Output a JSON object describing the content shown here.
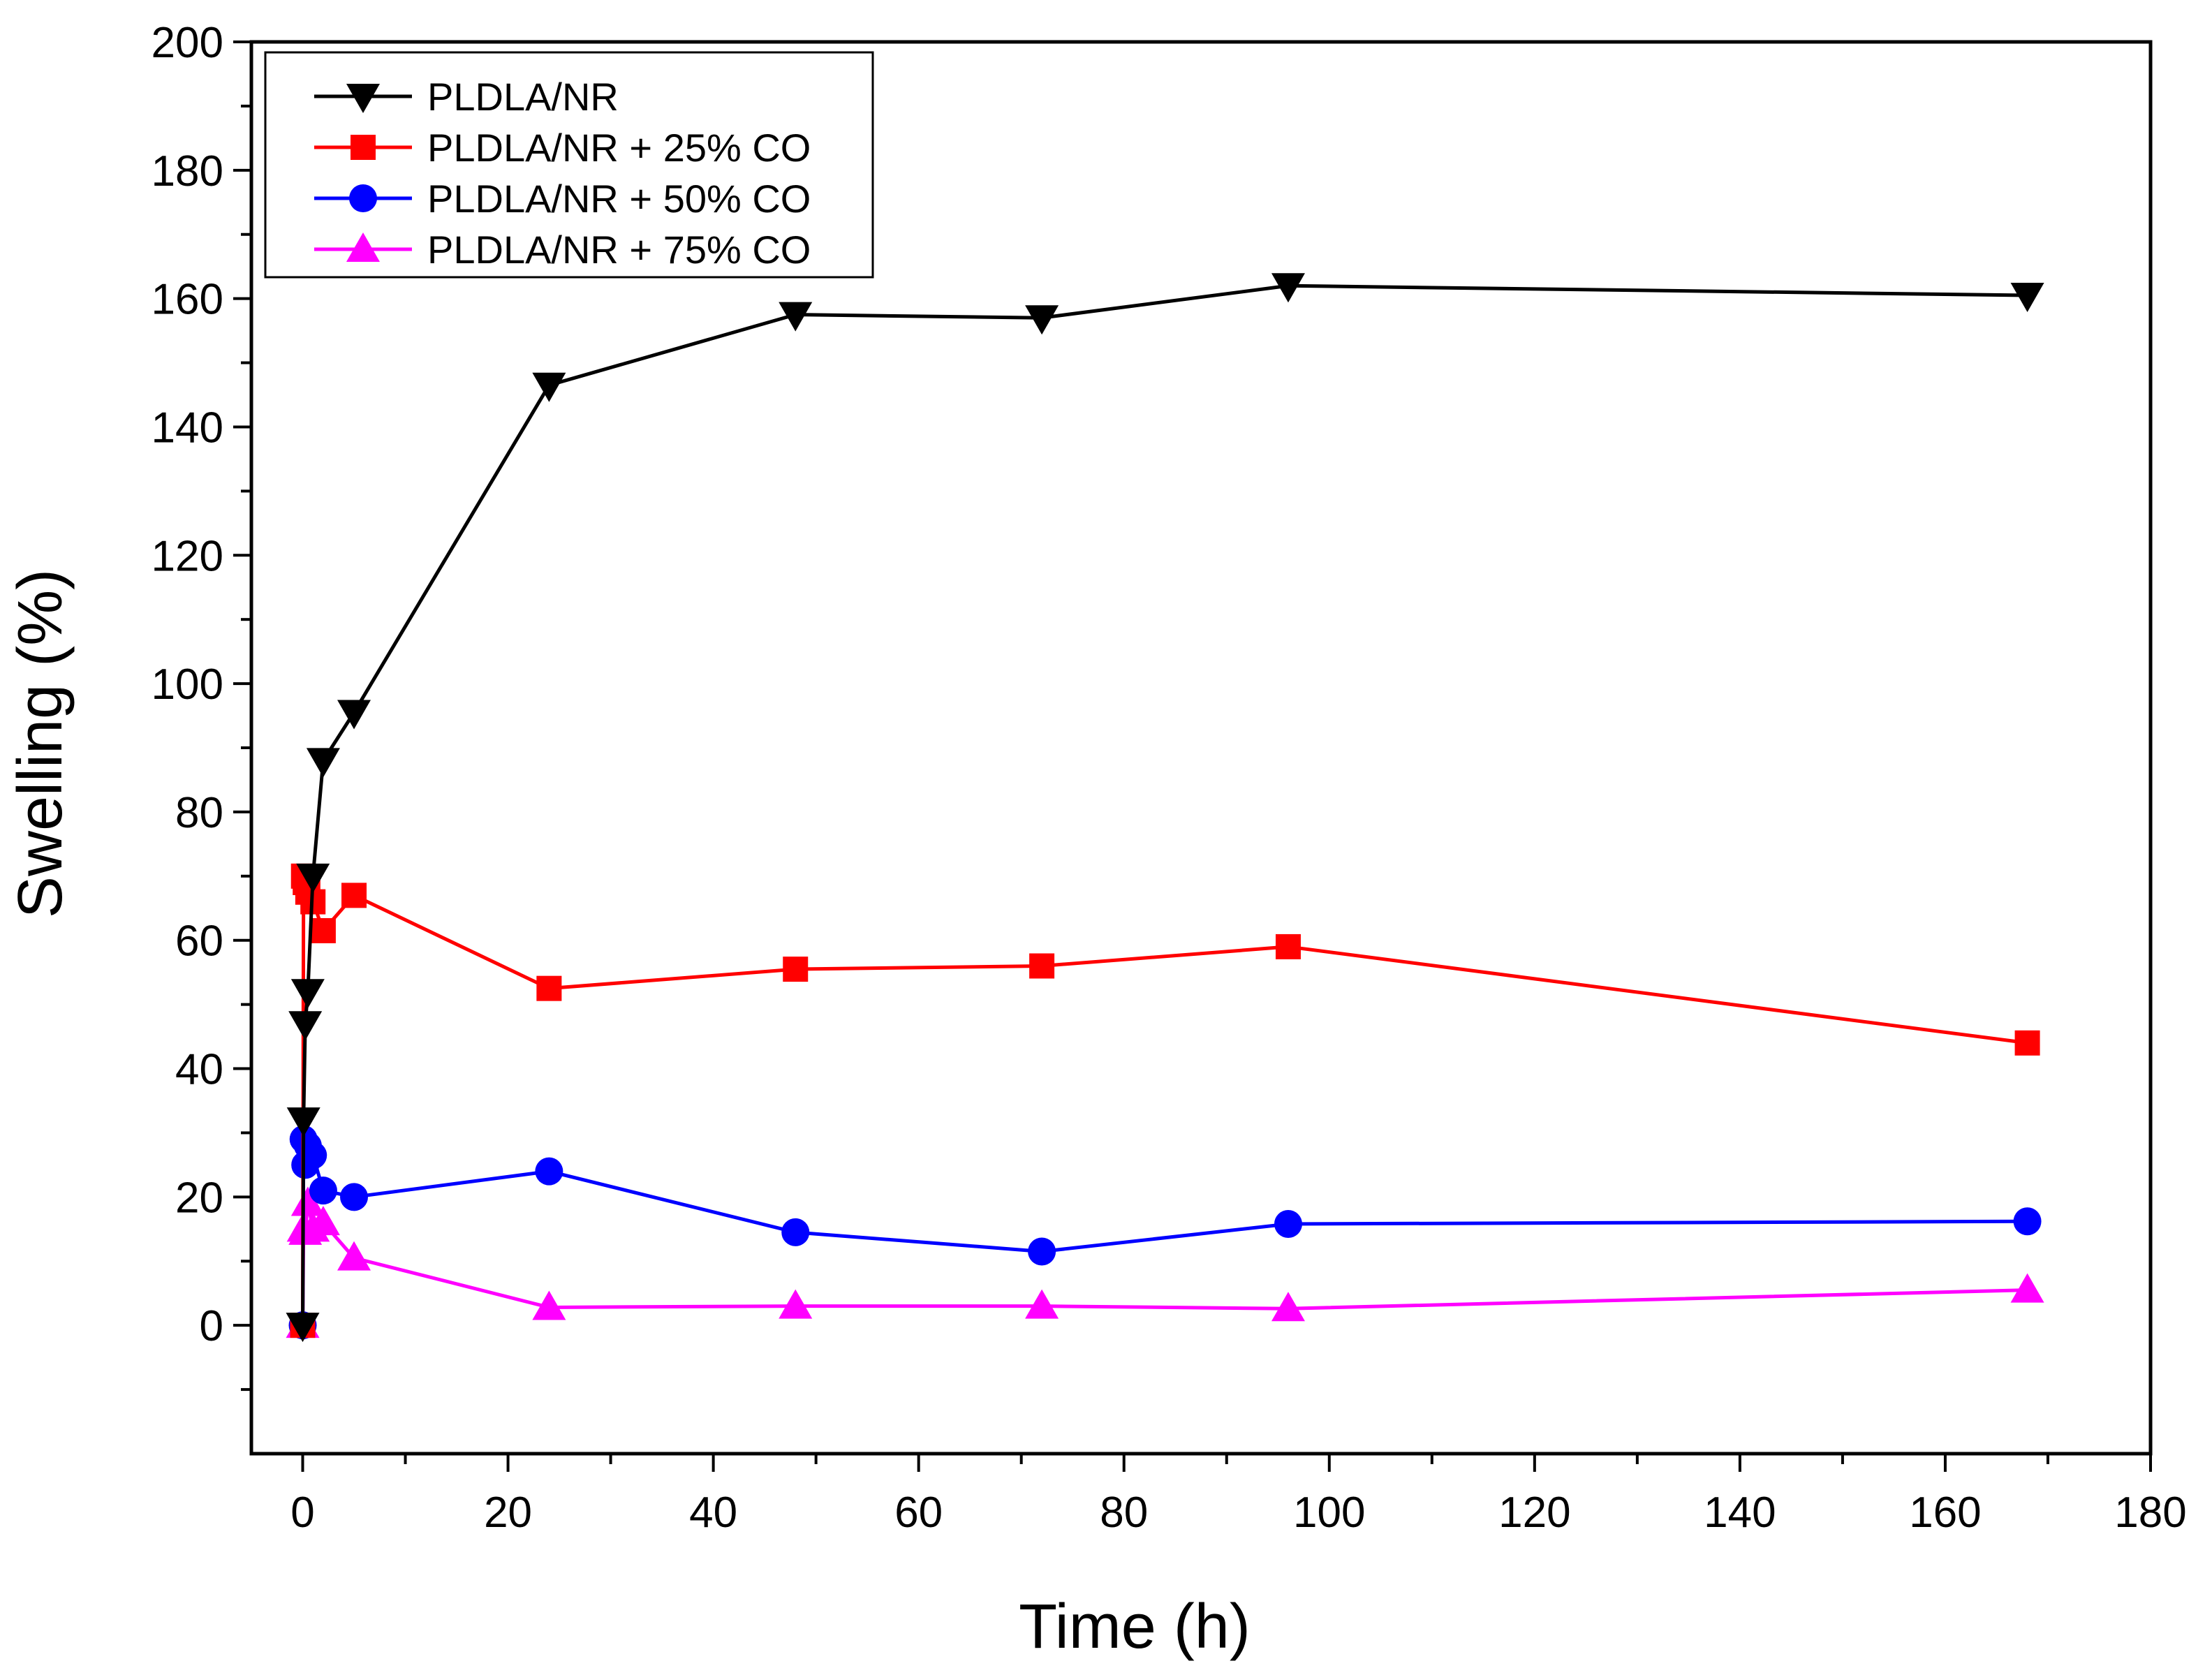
{
  "chart_data": {
    "type": "line",
    "title": "",
    "xlabel": "Time (h)",
    "ylabel": "Swelling (%)",
    "xlim": [
      -5,
      180
    ],
    "ylim": [
      -20,
      200
    ],
    "xticks": [
      0,
      20,
      40,
      60,
      80,
      100,
      120,
      140,
      160,
      180
    ],
    "yticks": [
      0,
      20,
      40,
      60,
      80,
      100,
      120,
      140,
      160,
      180,
      200
    ],
    "xtick_labels": [
      "0",
      "20",
      "40",
      "60",
      "80",
      "100",
      "120",
      "140",
      "160",
      "180"
    ],
    "ytick_labels": [
      "0",
      "20",
      "40",
      "60",
      "80",
      "100",
      "120",
      "140",
      "160",
      "180",
      "200"
    ],
    "grid": false,
    "legend_position": "top-left",
    "series": [
      {
        "name": "PLDLA/NR",
        "color": "#000000",
        "marker": "triangle-down",
        "x": [
          0,
          0.083,
          0.25,
          0.5,
          1,
          2,
          5,
          24,
          48,
          72,
          96,
          168
        ],
        "y": [
          0,
          32,
          47,
          52,
          70,
          88,
          95.5,
          146.5,
          157.5,
          157,
          162,
          160.5
        ]
      },
      {
        "name": "PLDLA/NR + 25% CO",
        "color": "#ff0000",
        "marker": "square",
        "x": [
          0,
          0.083,
          0.25,
          0.5,
          1,
          2,
          5,
          24,
          48,
          72,
          96,
          168
        ],
        "y": [
          0,
          70,
          69,
          67.5,
          66,
          61.5,
          67,
          52.5,
          55.5,
          56,
          59,
          44
        ]
      },
      {
        "name": "PLDLA/NR + 50% CO",
        "color": "#0000ff",
        "marker": "circle",
        "x": [
          0,
          0.083,
          0.25,
          0.5,
          1,
          2,
          5,
          24,
          48,
          72,
          96,
          168
        ],
        "y": [
          0,
          29,
          25,
          28,
          26.5,
          21,
          20,
          24,
          14.5,
          11.5,
          15.8,
          16.2
        ]
      },
      {
        "name": "PLDLA/NR + 75% CO",
        "color": "#ff00ff",
        "marker": "triangle-up",
        "x": [
          0,
          0.083,
          0.25,
          0.5,
          1,
          2,
          5,
          24,
          48,
          72,
          96,
          168
        ],
        "y": [
          0,
          15,
          14.5,
          19,
          15,
          16,
          10.5,
          2.8,
          3,
          3,
          2.6,
          5.5
        ]
      }
    ]
  }
}
